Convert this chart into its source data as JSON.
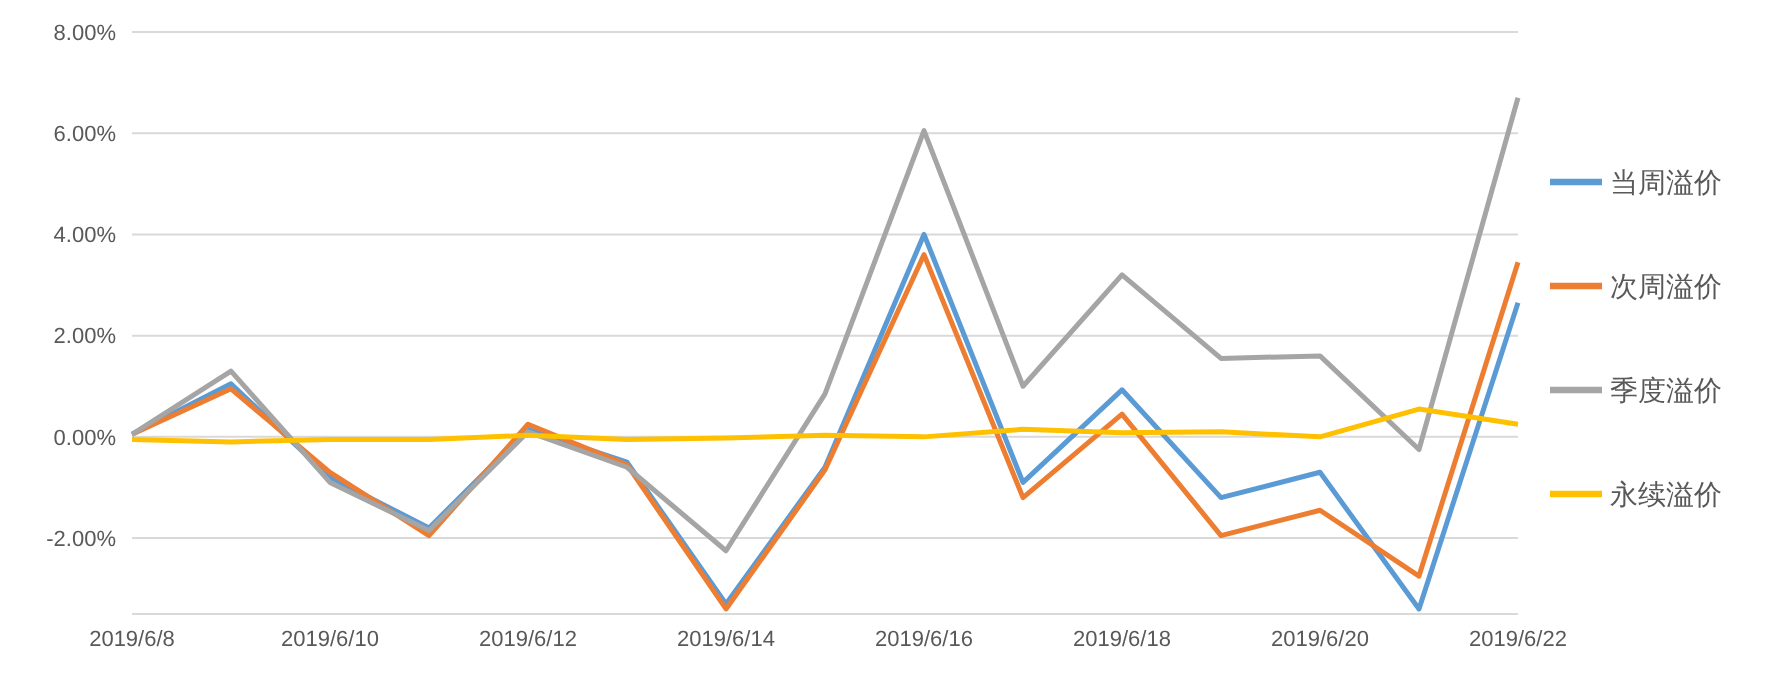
{
  "chart_data": {
    "type": "line",
    "categories": [
      "2019/6/8",
      null,
      "2019/6/10",
      null,
      "2019/6/12",
      null,
      "2019/6/14",
      null,
      "2019/6/16",
      null,
      "2019/6/18",
      null,
      "2019/6/20",
      null,
      "2019/6/22"
    ],
    "series": [
      {
        "name": "当周溢价",
        "color": "#5b9bd5",
        "values": [
          0.05,
          1.05,
          -0.8,
          -1.8,
          0.15,
          -0.5,
          -3.3,
          -0.6,
          4.0,
          -0.9,
          0.93,
          -1.2,
          -0.7,
          -3.4,
          2.65
        ]
      },
      {
        "name": "次周溢价",
        "color": "#ed7d31",
        "values": [
          0.05,
          0.95,
          -0.7,
          -1.95,
          0.25,
          -0.55,
          -3.4,
          -0.65,
          3.6,
          -1.2,
          0.45,
          -1.95,
          -1.45,
          -2.75,
          3.45
        ]
      },
      {
        "name": "季度溢价",
        "color": "#a5a5a5",
        "values": [
          0.05,
          1.3,
          -0.9,
          -1.85,
          0.1,
          -0.6,
          -2.25,
          0.85,
          6.05,
          1.0,
          3.2,
          1.55,
          1.6,
          -0.25,
          6.7
        ]
      },
      {
        "name": "永续溢价",
        "color": "#ffc000",
        "values": [
          -0.05,
          -0.1,
          -0.05,
          -0.05,
          0.03,
          -0.05,
          -0.02,
          0.03,
          0.0,
          0.15,
          0.08,
          0.1,
          0.0,
          0.55,
          0.25
        ]
      }
    ],
    "ylim": [
      -3.5,
      8
    ],
    "yticks": [
      {
        "value": -2,
        "label": "-2.00%"
      },
      {
        "value": 0,
        "label": "0.00%"
      },
      {
        "value": 2,
        "label": "2.00%"
      },
      {
        "value": 4,
        "label": "4.00%"
      },
      {
        "value": 6,
        "label": "6.00%"
      },
      {
        "value": 8,
        "label": "8.00%"
      }
    ],
    "grid": "y",
    "legend": "right",
    "marker": "none",
    "line_style": "solid"
  }
}
